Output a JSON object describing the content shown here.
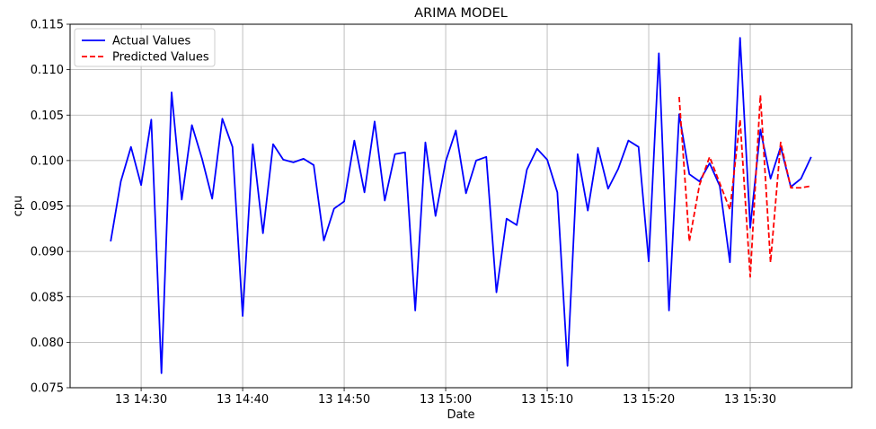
{
  "chart_data": {
    "type": "line",
    "title": "ARIMA MODEL",
    "xlabel": "Date",
    "ylabel": "cpu",
    "x_unit": "time (HH:MM on the 13th)",
    "xlim": [
      "13 14:23",
      "13 15:40"
    ],
    "ylim": [
      0.075,
      0.115
    ],
    "grid": true,
    "legend_position": "top-left",
    "x_ticks": [
      {
        "time": "13 14:30",
        "label": "13 14:30"
      },
      {
        "time": "13 14:40",
        "label": "13 14:40"
      },
      {
        "time": "13 14:50",
        "label": "13 14:50"
      },
      {
        "time": "13 15:00",
        "label": "13 15:00"
      },
      {
        "time": "13 15:10",
        "label": "13 15:10"
      },
      {
        "time": "13 15:20",
        "label": "13 15:20"
      },
      {
        "time": "13 15:30",
        "label": "13 15:30"
      }
    ],
    "y_ticks": [
      {
        "value": 0.075,
        "label": "0.075"
      },
      {
        "value": 0.08,
        "label": "0.080"
      },
      {
        "value": 0.085,
        "label": "0.085"
      },
      {
        "value": 0.09,
        "label": "0.090"
      },
      {
        "value": 0.095,
        "label": "0.095"
      },
      {
        "value": 0.1,
        "label": "0.100"
      },
      {
        "value": 0.105,
        "label": "0.105"
      },
      {
        "value": 0.11,
        "label": "0.110"
      },
      {
        "value": 0.115,
        "label": "0.115"
      }
    ],
    "series": [
      {
        "name": "Actual Values",
        "color": "#0000ff",
        "style": "solid",
        "x": [
          "13 14:27",
          "13 14:28",
          "13 14:29",
          "13 14:30",
          "13 14:31",
          "13 14:32",
          "13 14:33",
          "13 14:34",
          "13 14:35",
          "13 14:36",
          "13 14:37",
          "13 14:38",
          "13 14:39",
          "13 14:40",
          "13 14:41",
          "13 14:42",
          "13 14:43",
          "13 14:44",
          "13 14:45",
          "13 14:46",
          "13 14:47",
          "13 14:48",
          "13 14:49",
          "13 14:50",
          "13 14:51",
          "13 14:52",
          "13 14:53",
          "13 14:54",
          "13 14:55",
          "13 14:56",
          "13 14:57",
          "13 14:58",
          "13 14:59",
          "13 15:00",
          "13 15:01",
          "13 15:02",
          "13 15:03",
          "13 15:04",
          "13 15:05",
          "13 15:06",
          "13 15:07",
          "13 15:08",
          "13 15:09",
          "13 15:10",
          "13 15:11",
          "13 15:12",
          "13 15:13",
          "13 15:14",
          "13 15:15",
          "13 15:16",
          "13 15:17",
          "13 15:18",
          "13 15:19",
          "13 15:20",
          "13 15:21",
          "13 15:22",
          "13 15:23",
          "13 15:24",
          "13 15:25",
          "13 15:26",
          "13 15:27",
          "13 15:28",
          "13 15:29",
          "13 15:30",
          "13 15:31",
          "13 15:32",
          "13 15:33",
          "13 15:34",
          "13 15:35",
          "13 15:36"
        ],
        "y": [
          0.0911,
          0.0977,
          0.1015,
          0.0973,
          0.1045,
          0.0766,
          0.1075,
          0.0957,
          0.1039,
          0.1002,
          0.0958,
          0.1046,
          0.1015,
          0.0829,
          0.1018,
          0.092,
          0.1018,
          0.1001,
          0.0998,
          0.1002,
          0.0995,
          0.0912,
          0.0947,
          0.0955,
          0.1022,
          0.0965,
          0.1043,
          0.0956,
          0.1007,
          0.1009,
          0.0835,
          0.102,
          0.0939,
          0.0999,
          0.1033,
          0.0964,
          0.1,
          0.1004,
          0.0855,
          0.0936,
          0.0929,
          0.099,
          0.1013,
          0.1001,
          0.0965,
          0.0774,
          0.1007,
          0.0945,
          0.1014,
          0.0969,
          0.0991,
          0.1022,
          0.1015,
          0.0889,
          0.1118,
          0.0835,
          0.1051,
          0.0985,
          0.0977,
          0.0997,
          0.0972,
          0.0888,
          0.1135,
          0.0926,
          0.1034,
          0.098,
          0.1015,
          0.0971,
          0.098,
          0.1004
        ]
      },
      {
        "name": "Predicted Values",
        "color": "#ff0000",
        "style": "dashed",
        "x": [
          "13 15:23",
          "13 15:24",
          "13 15:25",
          "13 15:26",
          "13 15:27",
          "13 15:28",
          "13 15:29",
          "13 15:30",
          "13 15:31",
          "13 15:32",
          "13 15:33",
          "13 15:34",
          "13 15:35",
          "13 15:36"
        ],
        "y": [
          0.107,
          0.0911,
          0.0973,
          0.1004,
          0.0975,
          0.0946,
          0.1045,
          0.0872,
          0.1072,
          0.0888,
          0.102,
          0.097,
          0.097,
          0.0972
        ]
      }
    ]
  }
}
